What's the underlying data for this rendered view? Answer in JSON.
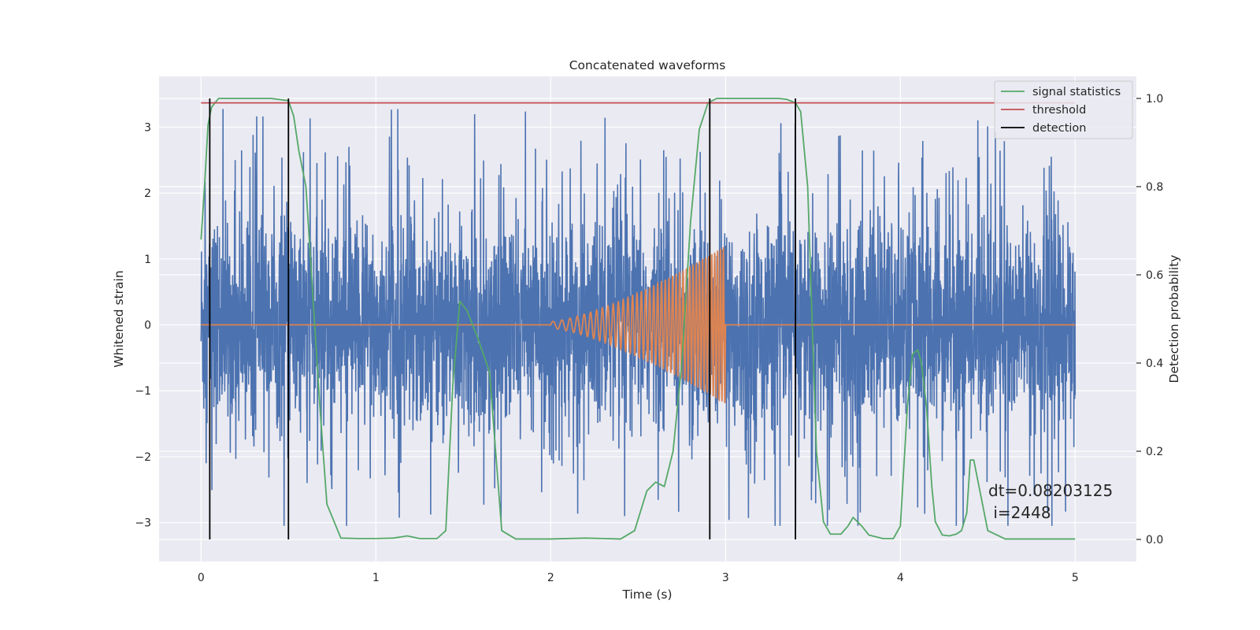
{
  "chart_data": {
    "type": "line",
    "title": "Concatenated waveforms",
    "xlabel": "Time (s)",
    "ylabel_left": "Whitened strain",
    "ylabel_right": "Detection probability",
    "xlim": [
      -0.24,
      5.35
    ],
    "ylim_left": [
      -3.59,
      3.77
    ],
    "ylim_right": [
      -0.05,
      1.05
    ],
    "x_ticks": [
      0,
      1,
      2,
      3,
      4,
      5
    ],
    "x_tick_labels": [
      "0",
      "1",
      "2",
      "3",
      "4",
      "5"
    ],
    "y_left_ticks": [
      -3,
      -2,
      -1,
      0,
      1,
      2,
      3
    ],
    "y_left_tick_labels": [
      "−3",
      "−2",
      "−1",
      "0",
      "1",
      "2",
      "3"
    ],
    "y_right_ticks": [
      0.0,
      0.2,
      0.4,
      0.6,
      0.8,
      1.0
    ],
    "y_right_tick_labels": [
      "0.0",
      "0.2",
      "0.4",
      "0.6",
      "0.8",
      "1.0"
    ],
    "grid": true,
    "legend_position": "top-right",
    "legend": [
      "signal statistics",
      "threshold",
      "detection"
    ],
    "colors": {
      "noise": "#4c72b0",
      "chirp": "#dd8452",
      "signal_statistics": "#55a868",
      "threshold": "#c44e52",
      "detection": "#000000",
      "plot_bg": "#eaeaf2",
      "grid": "#ffffff"
    },
    "noise_series": {
      "axis": "left",
      "x_range": [
        0,
        5
      ],
      "typical_range": [
        -1.3,
        1.3
      ],
      "extreme_range": [
        -3.05,
        3.45
      ]
    },
    "chirp_series": {
      "axis": "left",
      "x_range": [
        2.0,
        3.0
      ],
      "amplitude_start": 0.05,
      "amplitude_end": 1.2,
      "elsewhere_value": 0
    },
    "signal_statistics": {
      "axis": "right",
      "x": [
        0.0,
        0.02,
        0.04,
        0.06,
        0.1,
        0.2,
        0.3,
        0.4,
        0.5,
        0.53,
        0.56,
        0.6,
        0.64,
        0.68,
        0.72,
        0.8,
        0.9,
        1.0,
        1.1,
        1.18,
        1.25,
        1.3,
        1.35,
        1.4,
        1.44,
        1.48,
        1.52,
        1.58,
        1.65,
        1.72,
        1.8,
        2.0,
        2.2,
        2.4,
        2.48,
        2.55,
        2.6,
        2.65,
        2.7,
        2.75,
        2.8,
        2.85,
        2.9,
        2.95,
        3.0,
        3.1,
        3.2,
        3.3,
        3.35,
        3.4,
        3.43,
        3.47,
        3.52,
        3.56,
        3.6,
        3.66,
        3.7,
        3.73,
        3.78,
        3.82,
        3.9,
        3.96,
        4.0,
        4.04,
        4.07,
        4.1,
        4.12,
        4.15,
        4.18,
        4.2,
        4.24,
        4.28,
        4.32,
        4.35,
        4.38,
        4.4,
        4.42,
        4.46,
        4.5,
        4.6,
        4.8,
        5.0
      ],
      "y": [
        0.68,
        0.8,
        0.94,
        0.98,
        1.0,
        1.0,
        1.0,
        1.0,
        0.995,
        0.96,
        0.88,
        0.8,
        0.55,
        0.3,
        0.08,
        0.003,
        0.002,
        0.002,
        0.003,
        0.008,
        0.002,
        0.002,
        0.002,
        0.02,
        0.35,
        0.54,
        0.52,
        0.46,
        0.38,
        0.02,
        0.001,
        0.001,
        0.003,
        0.001,
        0.02,
        0.11,
        0.13,
        0.12,
        0.2,
        0.4,
        0.72,
        0.93,
        0.99,
        1.0,
        1.0,
        1.0,
        1.0,
        1.0,
        0.998,
        0.99,
        0.97,
        0.8,
        0.2,
        0.04,
        0.012,
        0.012,
        0.03,
        0.05,
        0.03,
        0.01,
        0.002,
        0.002,
        0.03,
        0.3,
        0.42,
        0.43,
        0.4,
        0.3,
        0.12,
        0.04,
        0.01,
        0.008,
        0.012,
        0.02,
        0.06,
        0.18,
        0.18,
        0.1,
        0.02,
        0.001,
        0.001,
        0.001
      ]
    },
    "threshold": {
      "axis": "right",
      "value": 0.99,
      "x_range": [
        0,
        5
      ]
    },
    "detections": [
      0.05,
      0.5,
      2.91,
      3.4
    ],
    "annotation": {
      "x": 4.5,
      "y": -2.6,
      "text": "dt=0.08203125\n i=2448"
    }
  },
  "legend_labels": {
    "signal_statistics": "signal statistics",
    "threshold": "threshold",
    "detection": "detection"
  },
  "annotation_lines": [
    "dt=0.08203125",
    " i=2448"
  ]
}
